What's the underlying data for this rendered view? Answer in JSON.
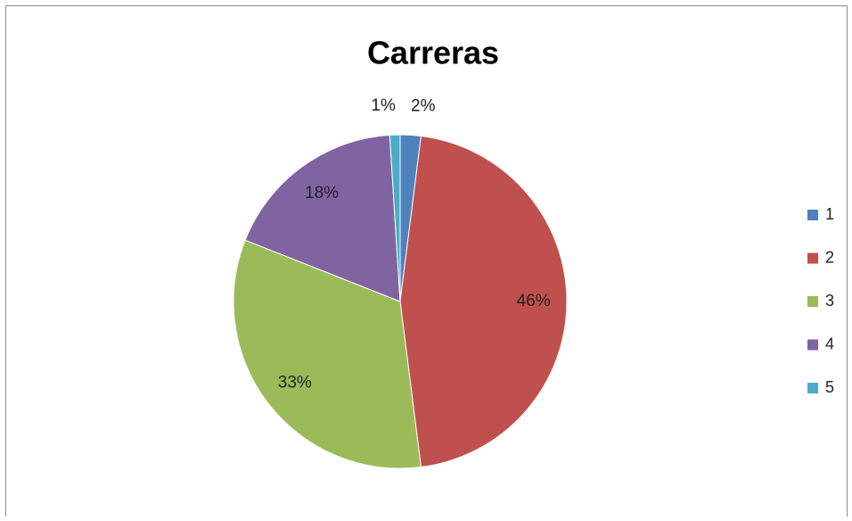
{
  "chart_data": {
    "type": "pie",
    "title": "Carreras",
    "categories": [
      "1",
      "2",
      "3",
      "4",
      "5"
    ],
    "values": [
      2,
      46,
      33,
      18,
      1
    ],
    "value_labels": [
      "2%",
      "46%",
      "33%",
      "18%",
      "1%"
    ],
    "colors": [
      "#4f81bd",
      "#c0504d",
      "#9bbb59",
      "#8064a2",
      "#4bacc6"
    ],
    "legend": "right"
  }
}
